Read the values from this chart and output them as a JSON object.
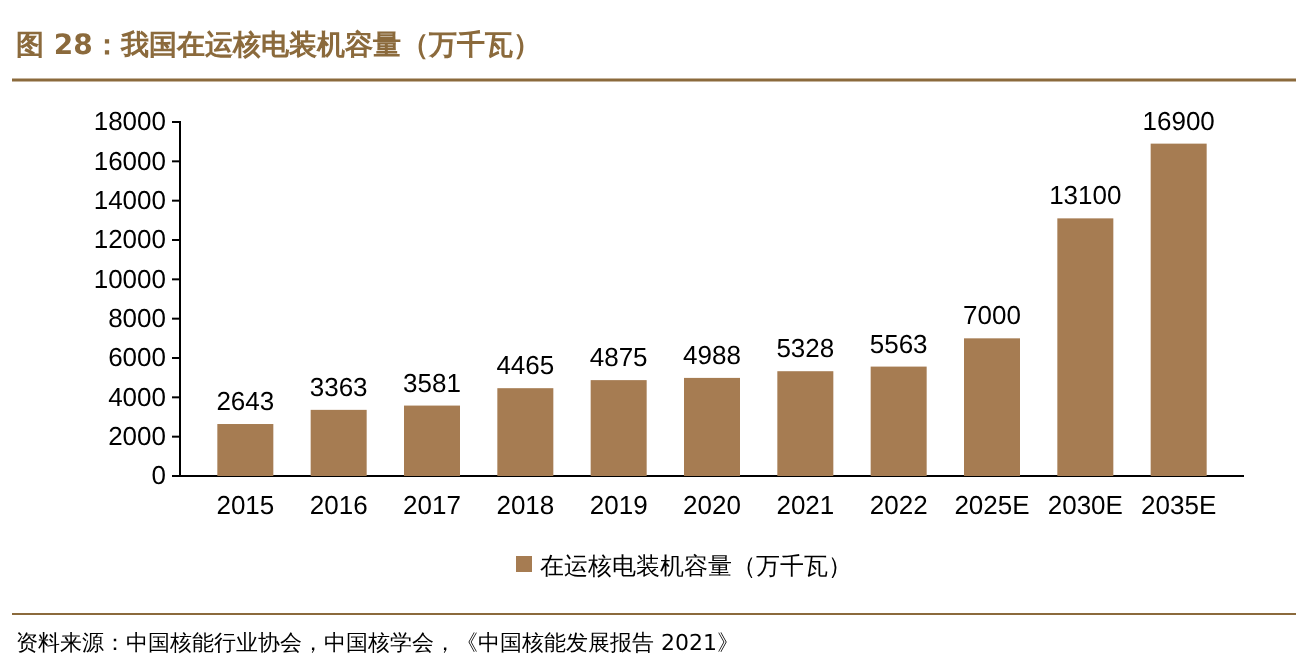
{
  "chart_data": {
    "type": "bar",
    "title": "图 28：我国在运核电装机容量（万千瓦）",
    "categories": [
      "2015",
      "2016",
      "2017",
      "2018",
      "2019",
      "2020",
      "2021",
      "2022",
      "2025E",
      "2030E",
      "2035E"
    ],
    "series": [
      {
        "name": "在运核电装机容量（万千瓦）",
        "color": "#a67c52",
        "values": [
          2643,
          3363,
          3581,
          4465,
          4875,
          4988,
          5328,
          5563,
          7000,
          13100,
          16900
        ]
      }
    ],
    "ylim": [
      0,
      18000
    ],
    "yticks": [
      0,
      2000,
      4000,
      6000,
      8000,
      10000,
      12000,
      14000,
      16000,
      18000
    ],
    "data_labels": true,
    "legend": "bottom",
    "grid": false,
    "annotations": [
      "资料来源：中国核能行业协会，中国核学会，《中国核能发展报告 2021》"
    ]
  }
}
